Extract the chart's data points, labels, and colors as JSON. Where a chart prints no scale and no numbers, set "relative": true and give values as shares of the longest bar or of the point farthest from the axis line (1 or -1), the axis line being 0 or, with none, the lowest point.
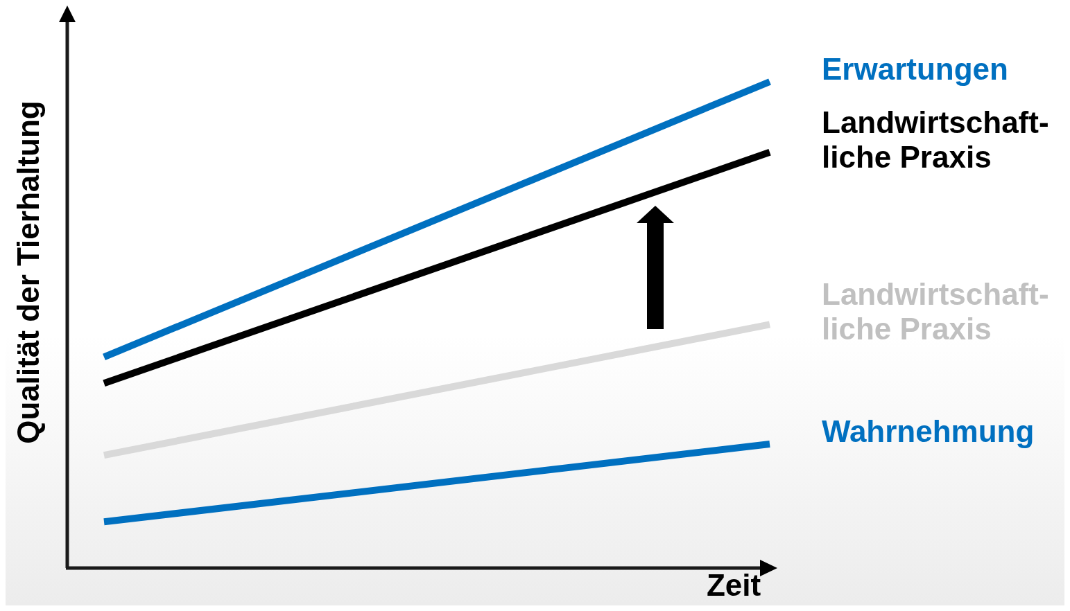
{
  "chart_data": {
    "type": "line",
    "relative": true,
    "xlabel": "Zeit",
    "ylabel": "Qualität der Tierhaltung",
    "categories": [
      null,
      null
    ],
    "legend": false,
    "marker": "none",
    "line_style": "solid",
    "series": [
      {
        "name": "Erwartungen",
        "color": "#0070c0",
        "values": [
          0.434,
          1
        ]
      },
      {
        "name": "Landwirtschaft-\nliche Praxis",
        "color": "#000000",
        "values": [
          0.38,
          0.855
        ]
      },
      {
        "name": "Landwirtschaft-\nliche Praxis",
        "color": "#d9d9d9",
        "values": [
          0.232,
          0.501
        ]
      },
      {
        "name": "Wahrnehmung",
        "color": "#0070c0",
        "values": [
          0.095,
          0.255
        ]
      }
    ]
  }
}
